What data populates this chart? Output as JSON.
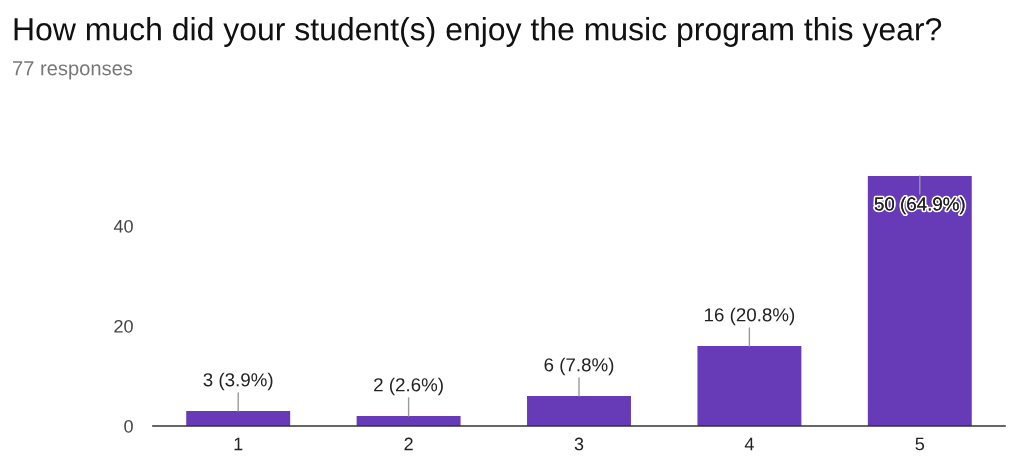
{
  "chart_data": {
    "type": "bar",
    "title": "How much did your student(s) enjoy the music program this year?",
    "subtitle": "77 responses",
    "categories": [
      "1",
      "2",
      "3",
      "4",
      "5"
    ],
    "values": [
      3,
      2,
      6,
      16,
      50
    ],
    "value_labels": [
      "3 (3.9%)",
      "2 (2.6%)",
      "6 (7.8%)",
      "16 (20.8%)",
      "50 (64.9%)"
    ],
    "color": "#673ab7",
    "ylim": [
      0,
      50
    ],
    "yticks": [
      0,
      20,
      40
    ],
    "grid": false
  }
}
